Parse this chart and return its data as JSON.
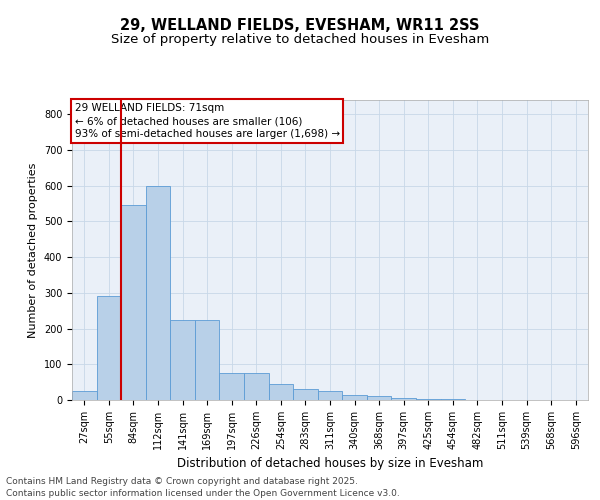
{
  "title1": "29, WELLAND FIELDS, EVESHAM, WR11 2SS",
  "title2": "Size of property relative to detached houses in Evesham",
  "xlabel": "Distribution of detached houses by size in Evesham",
  "ylabel": "Number of detached properties",
  "categories": [
    "27sqm",
    "55sqm",
    "84sqm",
    "112sqm",
    "141sqm",
    "169sqm",
    "197sqm",
    "226sqm",
    "254sqm",
    "283sqm",
    "311sqm",
    "340sqm",
    "368sqm",
    "397sqm",
    "425sqm",
    "454sqm",
    "482sqm",
    "511sqm",
    "539sqm",
    "568sqm",
    "596sqm"
  ],
  "values": [
    25,
    290,
    545,
    600,
    225,
    225,
    75,
    75,
    45,
    30,
    25,
    15,
    10,
    5,
    2,
    2,
    1,
    1,
    0,
    0,
    0
  ],
  "bar_color": "#b8d0e8",
  "bar_edge_color": "#5b9bd5",
  "vline_color": "#cc0000",
  "vline_pos": 1.5,
  "annotation_text": "29 WELLAND FIELDS: 71sqm\n← 6% of detached houses are smaller (106)\n93% of semi-detached houses are larger (1,698) →",
  "annotation_box_edgecolor": "#cc0000",
  "ylim": [
    0,
    840
  ],
  "yticks": [
    0,
    100,
    200,
    300,
    400,
    500,
    600,
    700,
    800
  ],
  "grid_color": "#c8d8e8",
  "bg_color": "#eaf0f8",
  "footnote": "Contains HM Land Registry data © Crown copyright and database right 2025.\nContains public sector information licensed under the Open Government Licence v3.0.",
  "title1_fontsize": 10.5,
  "title2_fontsize": 9.5,
  "xlabel_fontsize": 8.5,
  "ylabel_fontsize": 8,
  "tick_fontsize": 7,
  "annotation_fontsize": 7.5,
  "footnote_fontsize": 6.5
}
